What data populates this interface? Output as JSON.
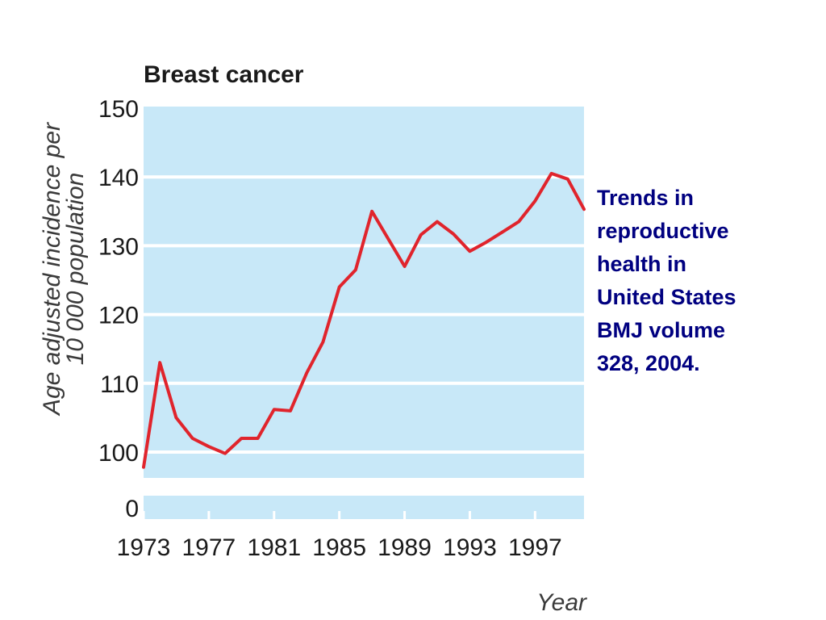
{
  "colors": {
    "plot_background": "#c8e8f8",
    "gridline": "#ffffff",
    "line": "#e0242c",
    "axis_text": "#1a1a1a",
    "note_text": "#000080"
  },
  "side_note": {
    "lines": [
      "Trends in",
      "reproductive",
      "health in",
      "United States",
      "BMJ volume",
      "328, 2004."
    ]
  },
  "chart_data": {
    "type": "line",
    "title": "Breast cancer",
    "xlabel": "Year",
    "ylabel": [
      "Age adjusted incidence per",
      "10 000 population"
    ],
    "x_ticks": [
      1973,
      1977,
      1981,
      1985,
      1989,
      1993,
      1997
    ],
    "y_ticks_upper": [
      100,
      110,
      120,
      130,
      140,
      150
    ],
    "y_ticks_lower": [
      0
    ],
    "ylim_upper": [
      100,
      150
    ],
    "axis_break": true,
    "grid": true,
    "series": [
      {
        "x": [
          1973,
          1974,
          1975,
          1976,
          1977,
          1978,
          1979,
          1980,
          1981,
          1982,
          1983,
          1984,
          1985,
          1986,
          1987,
          1988,
          1989,
          1990,
          1991,
          1992,
          1993,
          1994,
          1995,
          1996,
          1997,
          1998,
          1999,
          2000
        ],
        "values": [
          97.8,
          113.0,
          105.0,
          102.0,
          100.8,
          99.8,
          102.0,
          102.0,
          106.2,
          106.0,
          111.5,
          116.0,
          124.0,
          126.5,
          135.0,
          131.0,
          127.0,
          131.6,
          133.5,
          131.7,
          129.2,
          130.5,
          132.0,
          133.5,
          136.5,
          140.5,
          139.7,
          135.3
        ]
      }
    ]
  }
}
